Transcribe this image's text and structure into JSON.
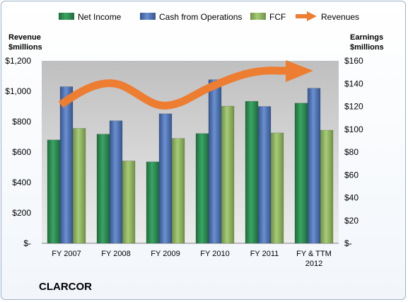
{
  "company": "CLARCOR",
  "colors": {
    "net_income": "#2e8b4f",
    "cash_ops": "#4a6fb5",
    "fcf": "#8fb361",
    "revenues": "#ed7d31"
  },
  "chart_data": {
    "type": "bar",
    "categories": [
      "FY 2007",
      "FY 2008",
      "FY 2009",
      "FY 2010",
      "FY 2011",
      "FY & TTM\n2012"
    ],
    "category_lines": [
      [
        "FY 2007"
      ],
      [
        "FY 2008"
      ],
      [
        "FY 2009"
      ],
      [
        "FY 2010"
      ],
      [
        "FY 2011"
      ],
      [
        "FY & TTM",
        "2012"
      ]
    ],
    "series": [
      {
        "name": "Net Income",
        "axis": "left",
        "values": [
          680,
          718,
          536,
          722,
          934,
          922
        ]
      },
      {
        "name": "Cash from Operations",
        "axis": "left",
        "values": [
          1030,
          806,
          852,
          1076,
          900,
          1020
        ]
      },
      {
        "name": "FCF",
        "axis": "left",
        "values": [
          756,
          542,
          690,
          902,
          726,
          744
        ]
      }
    ],
    "revenues_arrow": {
      "name": "Revenues"
    },
    "left_axis": {
      "label_lines": [
        "Revenue",
        "$millions"
      ],
      "ticks": [
        "$-",
        "$200",
        "$400",
        "$600",
        "$800",
        "$1,000",
        "$1,200"
      ],
      "ylim": [
        0,
        1200
      ]
    },
    "right_axis": {
      "label_lines": [
        "Earnings",
        "$millions"
      ],
      "ticks": [
        "$-",
        "$20",
        "$40",
        "$60",
        "$80",
        "$100",
        "$120",
        "$140",
        "$160"
      ],
      "ylim": [
        0,
        160
      ]
    },
    "legend": [
      "Net Income",
      "Cash from Operations",
      "FCF",
      "Revenues"
    ],
    "legend_position": "top",
    "grid": false
  }
}
